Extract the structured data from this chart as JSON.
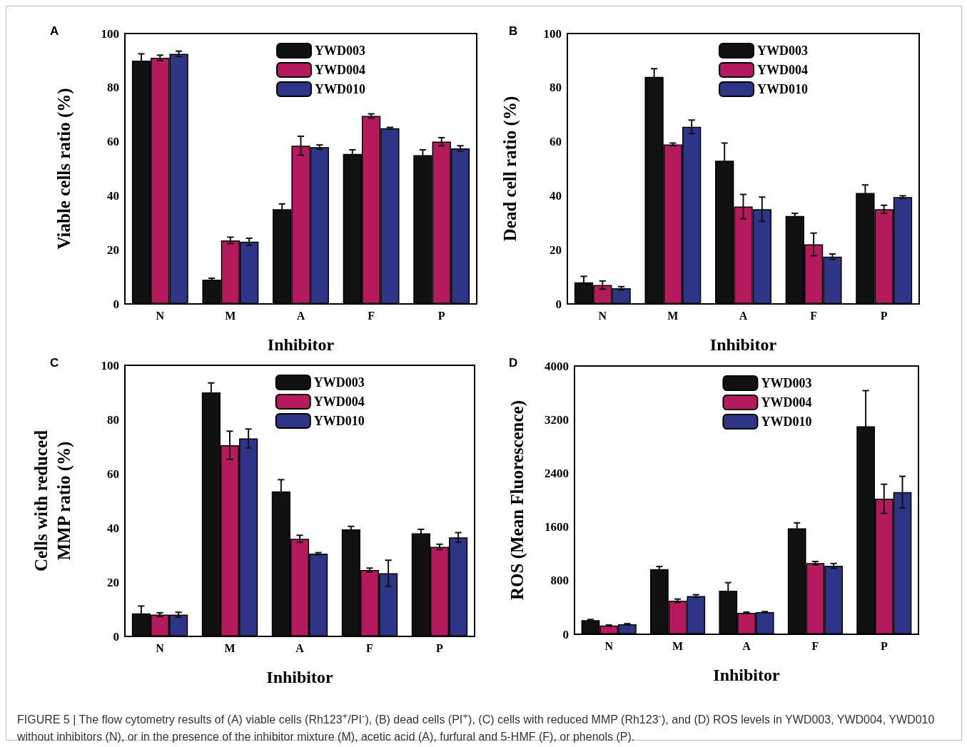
{
  "chart_data": [
    {
      "type": "bar",
      "title": "A",
      "xlabel": "Inhibitor",
      "ylabel": "Viable cells ratio (%)",
      "categories": [
        "N",
        "M",
        "A",
        "F",
        "P"
      ],
      "ylim": [
        0,
        100
      ],
      "yticks": [
        0,
        20,
        40,
        60,
        80,
        100
      ],
      "legend": "top",
      "grid": false,
      "series": [
        {
          "name": "YWD003",
          "color": "#111111",
          "values": [
            90,
            9,
            35,
            55.5,
            55
          ],
          "errors": [
            2.5,
            0.5,
            2,
            1.5,
            2
          ]
        },
        {
          "name": "YWD004",
          "color": "#b5195e",
          "values": [
            91,
            23.5,
            58.5,
            69.5,
            60
          ],
          "errors": [
            1,
            1.2,
            3.5,
            0.8,
            1.5
          ]
        },
        {
          "name": "YWD010",
          "color": "#2e3587",
          "values": [
            92.5,
            23,
            58,
            65,
            57.5
          ],
          "errors": [
            1,
            1.3,
            0.8,
            0.3,
            1
          ]
        }
      ]
    },
    {
      "type": "bar",
      "title": "B",
      "xlabel": "Inhibitor",
      "ylabel": "Dead cell ratio (%)",
      "categories": [
        "N",
        "M",
        "A",
        "F",
        "P"
      ],
      "ylim": [
        0,
        100
      ],
      "yticks": [
        0,
        20,
        40,
        60,
        80,
        100
      ],
      "legend": "top",
      "grid": false,
      "series": [
        {
          "name": "YWD003",
          "color": "#111111",
          "values": [
            8,
            84,
            53,
            32.5,
            41
          ],
          "errors": [
            2.2,
            3,
            6.5,
            1,
            3
          ]
        },
        {
          "name": "YWD004",
          "color": "#b5195e",
          "values": [
            7,
            59,
            36,
            22,
            35
          ],
          "errors": [
            1.5,
            0.5,
            4.5,
            4.2,
            1.5
          ]
        },
        {
          "name": "YWD010",
          "color": "#2e3587",
          "values": [
            5.8,
            65.5,
            35,
            17.5,
            39.5
          ],
          "errors": [
            0.6,
            2.5,
            4.5,
            1,
            0.5
          ]
        }
      ]
    },
    {
      "type": "bar",
      "title": "C",
      "xlabel": "Inhibitor",
      "ylabel": "Cells with reduced\nMMP ratio (%)",
      "categories": [
        "N",
        "M",
        "A",
        "F",
        "P"
      ],
      "ylim": [
        0,
        100
      ],
      "yticks": [
        0,
        20,
        40,
        60,
        80,
        100
      ],
      "legend": "top",
      "grid": false,
      "series": [
        {
          "name": "YWD003",
          "color": "#111111",
          "values": [
            8.5,
            90,
            53.5,
            39.5,
            38
          ],
          "errors": [
            2.7,
            3.5,
            4.3,
            1.1,
            1.5
          ]
        },
        {
          "name": "YWD004",
          "color": "#b5195e",
          "values": [
            8,
            70.5,
            36,
            24.5,
            33
          ],
          "errors": [
            0.7,
            5.2,
            1.3,
            0.7,
            1
          ]
        },
        {
          "name": "YWD010",
          "color": "#2e3587",
          "values": [
            8,
            73,
            30.5,
            23.3,
            36.5
          ],
          "errors": [
            0.9,
            3.5,
            0.4,
            4.8,
            1.8
          ]
        }
      ]
    },
    {
      "type": "bar",
      "title": "D",
      "xlabel": "Inhibitor",
      "ylabel": "ROS (Mean Fluorescence)",
      "categories": [
        "N",
        "M",
        "A",
        "F",
        "P"
      ],
      "ylim": [
        0,
        4000
      ],
      "yticks": [
        0,
        800,
        1600,
        2400,
        3200,
        4000
      ],
      "legend": "top",
      "grid": false,
      "annotations": [
        "FIGURE 5 | The flow cytometry results of (A) viable cells (Rh123$^{+}$/PI$^{-}$), (B) dead cells (PI$^{+}$), (C) cells with reduced MMP (Rh123$^{-}$), and (D) ROS levels in YWD003, YWD004, YWD010 without inhibitors (N), or in the presence of the inhibitor mixture (M), acetic acid (A), furfural and 5-HMF (F), or phenols (P)."
      ],
      "series": [
        {
          "name": "YWD003",
          "color": "#111111",
          "values": [
            210,
            970,
            650,
            1580,
            3100
          ],
          "errors": [
            10,
            40,
            120,
            82,
            533
          ]
        },
        {
          "name": "YWD004",
          "color": "#b5195e",
          "values": [
            130,
            500,
            320,
            1060,
            2020
          ],
          "errors": [
            8,
            25,
            10,
            25,
            217
          ]
        },
        {
          "name": "YWD010",
          "color": "#2e3587",
          "values": [
            150,
            570,
            330,
            1020,
            2120
          ],
          "errors": [
            8,
            20,
            8,
            35,
            235
          ]
        }
      ]
    }
  ]
}
